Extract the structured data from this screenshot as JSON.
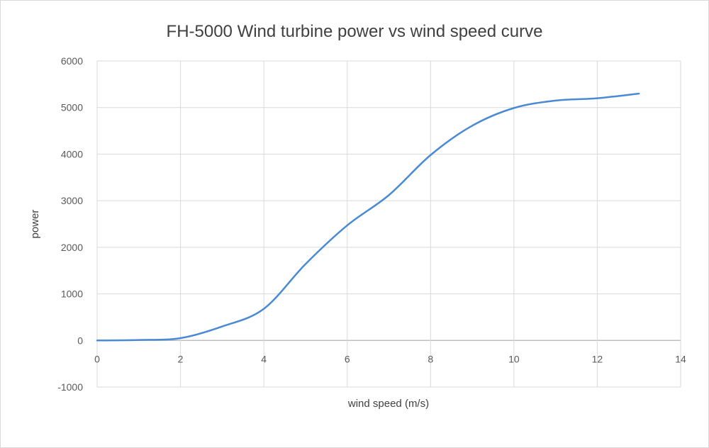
{
  "chart_data": {
    "type": "line",
    "title": "FH-5000 Wind turbine power vs wind speed curve",
    "xlabel": "wind speed (m/s)",
    "ylabel": "power",
    "xlim": [
      0,
      14
    ],
    "ylim": [
      -1000,
      6000
    ],
    "xticks": [
      "0",
      "2",
      "4",
      "6",
      "8",
      "10",
      "12",
      "14"
    ],
    "yticks": [
      "-1000",
      "0",
      "1000",
      "2000",
      "3000",
      "4000",
      "5000",
      "6000"
    ],
    "grid": true,
    "smooth": true,
    "series": [
      {
        "name": "power",
        "color": "#4a8ad4",
        "x": [
          0,
          1,
          2,
          3,
          4,
          5,
          6,
          7,
          8,
          9,
          10,
          11,
          12,
          13
        ],
        "y": [
          0,
          10,
          50,
          300,
          680,
          1640,
          2470,
          3120,
          3980,
          4610,
          4990,
          5150,
          5200,
          5300
        ]
      }
    ]
  }
}
